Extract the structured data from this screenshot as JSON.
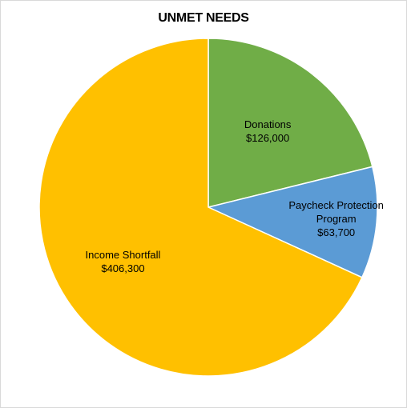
{
  "chart_data": {
    "type": "pie",
    "title": "UNMET NEEDS",
    "slices": [
      {
        "name": "Donations",
        "label_lines": [
          "Donations"
        ],
        "value_label": "$126,000",
        "value": 126000,
        "color": "#70ad47"
      },
      {
        "name": "Paycheck Protection Program",
        "label_lines": [
          "Paycheck Protection",
          "Program"
        ],
        "value_label": "$63,700",
        "value": 63700,
        "color": "#5b9bd5"
      },
      {
        "name": "Income Shortfall",
        "label_lines": [
          "Income Shortfall"
        ],
        "value_label": "$406,300",
        "value": 406300,
        "color": "#ffc000"
      }
    ],
    "start_angle_deg": 0,
    "direction": "clockwise",
    "legend": "none",
    "data_labels": "inside"
  }
}
